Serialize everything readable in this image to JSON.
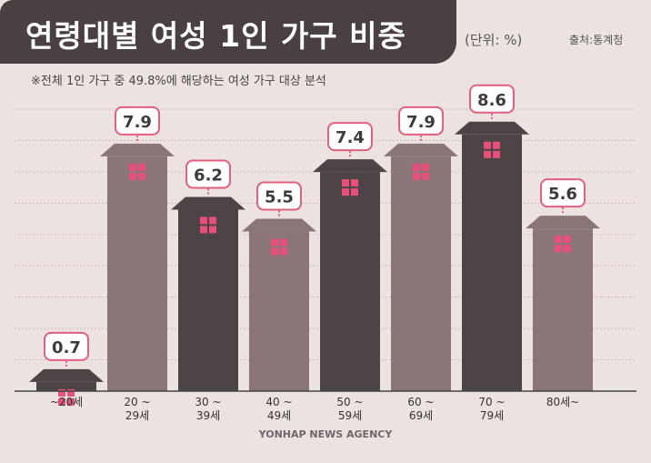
{
  "header": {
    "title": "연령대별 여성 1인 가구 비중",
    "unit": "(단위: %)",
    "source": "출처:통계청",
    "note": "※전체 1인 가구 중 49.8%에 해당하는 여성 가구 대상 분석"
  },
  "footer": {
    "credit": "YONHAP NEWS AGENCY"
  },
  "colors": {
    "background": "#ece3e1",
    "title_bar": "#4a4042",
    "dark_building": "#4d4446",
    "light_building": "#8a7678",
    "window": "#e8507a",
    "label_border": "#e0607f"
  },
  "chart_data": {
    "type": "bar",
    "title": "연령대별 여성 1인 가구 비중",
    "xlabel": "",
    "ylabel": "",
    "unit": "%",
    "categories": [
      "~20세",
      "20 ~ 29세",
      "30 ~ 39세",
      "40 ~ 49세",
      "50 ~ 59세",
      "60 ~ 69세",
      "70 ~ 79세",
      "80세~"
    ],
    "values": [
      0.7,
      7.9,
      6.2,
      5.5,
      7.4,
      7.9,
      8.6,
      5.6
    ],
    "ylim": [
      0,
      9
    ],
    "grid": true
  }
}
